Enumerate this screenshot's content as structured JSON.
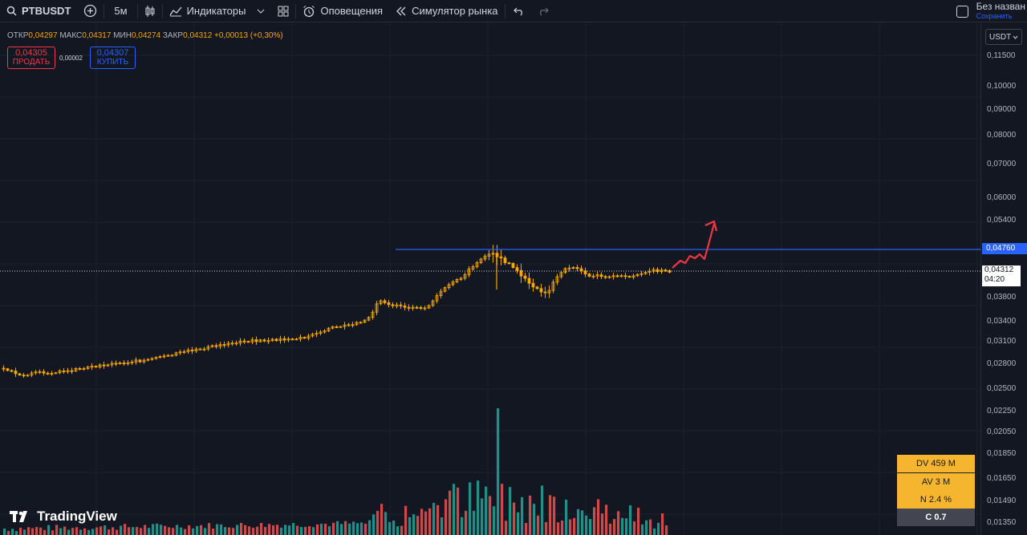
{
  "toolbar": {
    "symbol": "PTBUSDT",
    "interval": "5м",
    "indicators": "Индикаторы",
    "alerts": "Оповещения",
    "replay": "Симулятор рынка",
    "layout_name": "Без назван",
    "layout_save": "Сохранить"
  },
  "legend": {
    "open_label": "ОТКР",
    "open": "0,04297",
    "high_label": "МАКС",
    "high": "0,04317",
    "low_label": "МИН",
    "low": "0,04274",
    "close_label": "ЗАКР",
    "close": "0,04312",
    "change": "+0,00013 (+0,30%)"
  },
  "trade": {
    "sell_price": "0,04305",
    "sell_label": "ПРОДАТЬ",
    "spread": "0,00002",
    "buy_price": "0,04307",
    "buy_label": "КУПИТЬ"
  },
  "axis": {
    "currency": "USDT",
    "ticks": [
      "0,11500",
      "0,10000",
      "0,09000",
      "0,08000",
      "0,07000",
      "0,06000",
      "0,05400",
      "0,04760",
      "0,03800",
      "0,03400",
      "0,03100",
      "0,02800",
      "0,02500",
      "0,02250",
      "0,02050",
      "0,01850",
      "0,01650",
      "0,01490",
      "0,01350"
    ],
    "horizontal_line_label": "0,04760",
    "current_price": "0,04312",
    "countdown": "04:20"
  },
  "stats": {
    "dv": "DV 459 M",
    "av": "AV 3 M",
    "n": "N 2.4 %",
    "c": "C  0.7"
  },
  "logo": {
    "text": "TradingView"
  },
  "colors": {
    "background": "#131722",
    "up": "#f7a600",
    "down": "#f7a600",
    "vol_up": "#26a69a",
    "vol_down": "#ef5350",
    "hline": "#2962ff",
    "arrow": "#f23645"
  }
}
